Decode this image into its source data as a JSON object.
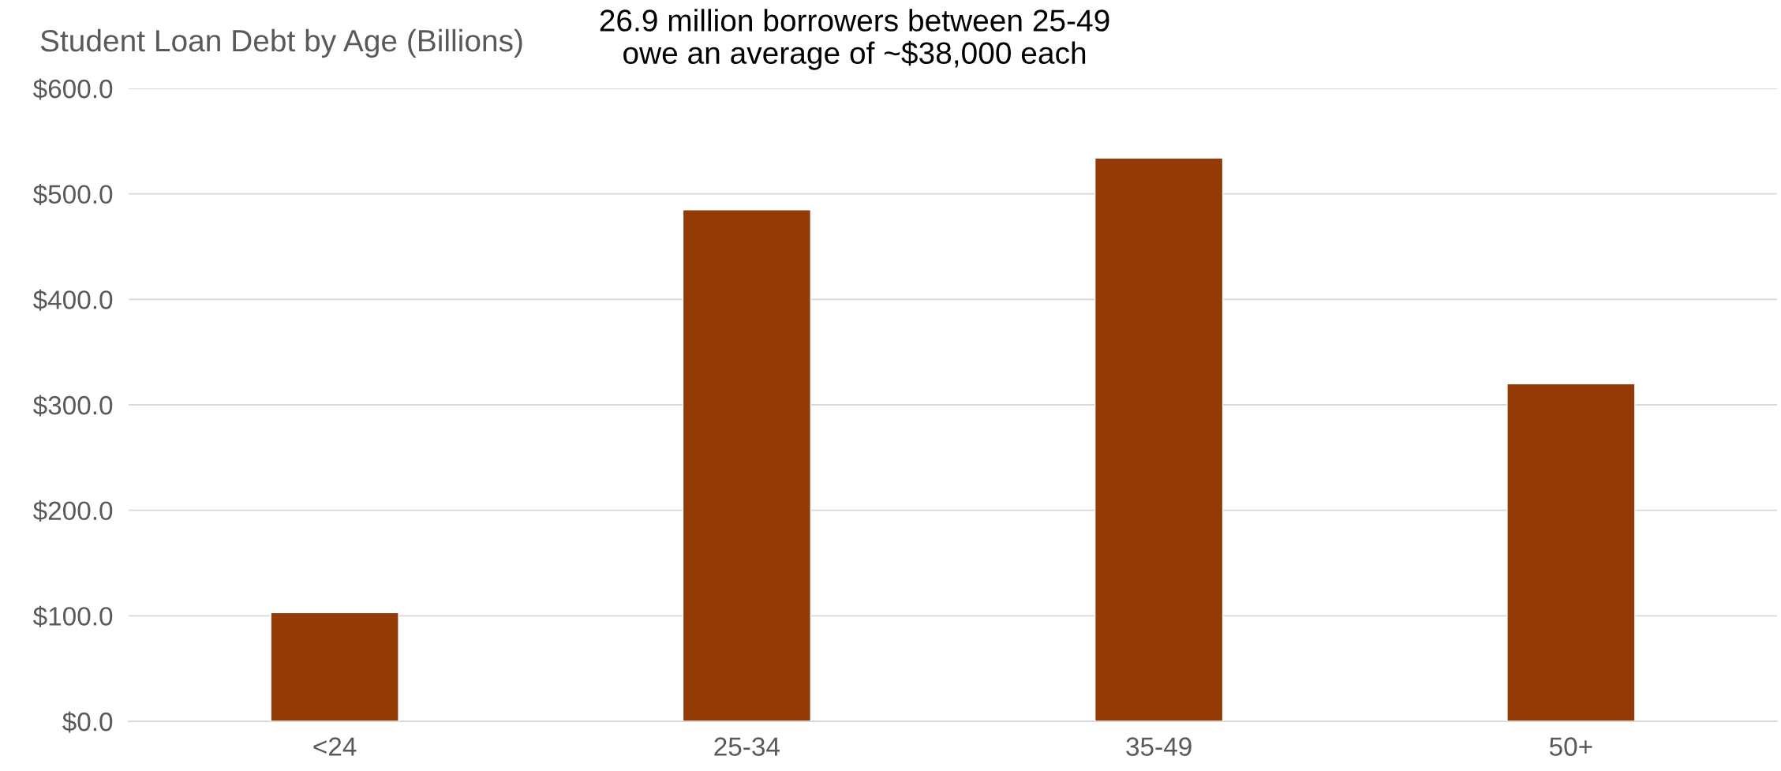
{
  "chart_data": {
    "type": "bar",
    "title": "Student Loan Debt by Age (Billions)",
    "subtitle": "26.9 million borrowers between 25-49\nowe an average of ~$38,000 each",
    "categories": [
      "<24",
      "25-34",
      "35-49",
      "50+"
    ],
    "values": [
      103,
      485,
      534,
      320
    ],
    "color": "#933a06",
    "ylim": [
      0,
      600
    ],
    "yticks": [
      {
        "value": 0,
        "label": "$0.0"
      },
      {
        "value": 100,
        "label": "$100.0"
      },
      {
        "value": 200,
        "label": "$200.0"
      },
      {
        "value": 300,
        "label": "$300.0"
      },
      {
        "value": 400,
        "label": "$400.0"
      },
      {
        "value": 500,
        "label": "$500.0"
      },
      {
        "value": 600,
        "label": "$600.0"
      }
    ],
    "grid": "y",
    "legend": false
  }
}
